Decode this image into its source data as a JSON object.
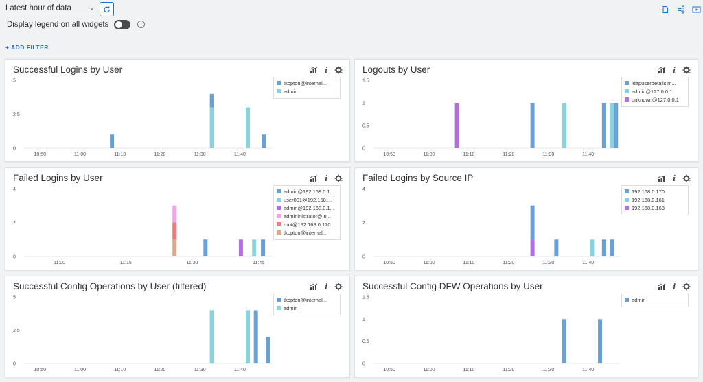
{
  "toolbar": {
    "time_range": "Latest hour of data",
    "legend_toggle_label": "Display legend on all widgets",
    "add_filter_label": "+ ADD FILTER",
    "legend_toggle_on": false
  },
  "colors": {
    "blue": "#6b9fd8",
    "cyan": "#88d3de",
    "purple": "#b36fe0",
    "pink": "#eea6e8",
    "red": "#ee7d7d",
    "tan": "#d8a98a",
    "accent": "#1a73c9"
  },
  "widgets": [
    {
      "title": "Successful Logins by User",
      "legend": [
        {
          "label": "tkopton@internal...",
          "color": "#6b9fd8"
        },
        {
          "label": "admin",
          "color": "#88d3de"
        }
      ],
      "chart_data": {
        "type": "bar",
        "stacked": true,
        "xlim": [
          "10:46",
          "11:48"
        ],
        "xticks": [
          "10:50",
          "11:00",
          "11:10",
          "11:20",
          "11:30",
          "11:40"
        ],
        "yticks": [
          "0",
          "2.5",
          "5"
        ],
        "ylim": [
          0,
          5
        ],
        "bars": [
          {
            "x": "11:08",
            "segments": [
              {
                "series": "tkopton@internal...",
                "value": 1
              }
            ]
          },
          {
            "x": "11:33",
            "segments": [
              {
                "series": "admin",
                "value": 3
              },
              {
                "series": "tkopton@internal...",
                "value": 1
              }
            ]
          },
          {
            "x": "11:42",
            "segments": [
              {
                "series": "admin",
                "value": 3
              }
            ]
          },
          {
            "x": "11:46",
            "segments": [
              {
                "series": "tkopton@internal...",
                "value": 1
              }
            ]
          }
        ]
      }
    },
    {
      "title": "Logouts by User",
      "legend": [
        {
          "label": "ldapuserdetailsim...",
          "color": "#6b9fd8"
        },
        {
          "label": "admin@127.0.0.1",
          "color": "#88d3de"
        },
        {
          "label": "unknown@127.0.0.1",
          "color": "#b36fe0"
        }
      ],
      "chart_data": {
        "type": "bar",
        "stacked": true,
        "xlim": [
          "10:46",
          "11:48"
        ],
        "xticks": [
          "10:50",
          "11:00",
          "11:10",
          "11:20",
          "11:30",
          "11:40"
        ],
        "yticks": [
          "0",
          "0.5",
          "1",
          "1.5"
        ],
        "ylim": [
          0,
          1.5
        ],
        "bars": [
          {
            "x": "11:07",
            "segments": [
              {
                "series": "unknown@127.0.0.1",
                "value": 1
              }
            ]
          },
          {
            "x": "11:26",
            "segments": [
              {
                "series": "ldapuserdetailsim...",
                "value": 1
              }
            ]
          },
          {
            "x": "11:34",
            "segments": [
              {
                "series": "admin@127.0.0.1",
                "value": 1
              }
            ]
          },
          {
            "x": "11:44",
            "segments": [
              {
                "series": "ldapuserdetailsim...",
                "value": 1
              }
            ]
          },
          {
            "x": "11:46",
            "segments": [
              {
                "series": "admin@127.0.0.1",
                "value": 1
              }
            ]
          },
          {
            "x": "11:47",
            "segments": [
              {
                "series": "ldapuserdetailsim...",
                "value": 1
              }
            ]
          }
        ]
      }
    },
    {
      "title": "Failed Logins by User",
      "legend": [
        {
          "label": "admin@192.168.0.1...",
          "color": "#6b9fd8"
        },
        {
          "label": "user001@192.168....",
          "color": "#88d3de"
        },
        {
          "label": "admin@192.168.0.1...",
          "color": "#b36fe0"
        },
        {
          "label": "admininistrator@in...",
          "color": "#eea6e8"
        },
        {
          "label": "root@192.168.0.170",
          "color": "#ee7d7d"
        },
        {
          "label": "tkopton@internal...",
          "color": "#d8a98a"
        }
      ],
      "chart_data": {
        "type": "bar",
        "stacked": true,
        "xlim": [
          "10:52",
          "11:48"
        ],
        "xticks": [
          "11:00",
          "11:15",
          "11:30",
          "11:45"
        ],
        "yticks": [
          "0",
          "2",
          "4"
        ],
        "ylim": [
          0,
          4
        ],
        "bars": [
          {
            "x": "11:26",
            "segments": [
              {
                "series": "tkopton@internal...",
                "value": 1
              },
              {
                "series": "root@192.168.0.170",
                "value": 1
              },
              {
                "series": "admininistrator@in...",
                "value": 1
              }
            ]
          },
          {
            "x": "11:33",
            "segments": [
              {
                "series": "admin@192.168.0.1...",
                "value": 1
              }
            ]
          },
          {
            "x": "11:41",
            "segments": [
              {
                "series": "admin@192.168.0.1... ",
                "value": 1
              }
            ]
          },
          {
            "x": "11:44",
            "segments": [
              {
                "series": "user001@192.168....",
                "value": 1
              }
            ]
          },
          {
            "x": "11:46",
            "segments": [
              {
                "series": "admin@192.168.0.1...",
                "value": 1
              }
            ]
          }
        ]
      }
    },
    {
      "title": "Failed Logins by Source IP",
      "legend": [
        {
          "label": "192.168.0.170",
          "color": "#6b9fd8"
        },
        {
          "label": "192.168.0.161",
          "color": "#88d3de"
        },
        {
          "label": "192.168.0.163",
          "color": "#b36fe0"
        }
      ],
      "chart_data": {
        "type": "bar",
        "stacked": true,
        "xlim": [
          "10:46",
          "11:48"
        ],
        "xticks": [
          "10:50",
          "11:00",
          "11:10",
          "11:20",
          "11:30",
          "11:40"
        ],
        "yticks": [
          "0",
          "2",
          "4"
        ],
        "ylim": [
          0,
          4
        ],
        "bars": [
          {
            "x": "11:26",
            "segments": [
              {
                "series": "192.168.0.163",
                "value": 1
              },
              {
                "series": "192.168.0.170",
                "value": 2
              }
            ]
          },
          {
            "x": "11:32",
            "segments": [
              {
                "series": "192.168.0.170",
                "value": 1
              }
            ]
          },
          {
            "x": "11:41",
            "segments": [
              {
                "series": "192.168.0.161",
                "value": 1
              }
            ]
          },
          {
            "x": "11:44",
            "segments": [
              {
                "series": "192.168.0.170",
                "value": 1
              }
            ]
          },
          {
            "x": "11:46",
            "segments": [
              {
                "series": "192.168.0.170",
                "value": 1
              }
            ]
          }
        ]
      }
    },
    {
      "title": "Successful Config Operations by User (filtered)",
      "legend": [
        {
          "label": "tkopton@internal...",
          "color": "#6b9fd8"
        },
        {
          "label": "admin",
          "color": "#88d3de"
        }
      ],
      "chart_data": {
        "type": "bar",
        "stacked": true,
        "xlim": [
          "10:46",
          "11:48"
        ],
        "xticks": [
          "10:50",
          "11:00",
          "11:10",
          "11:20",
          "11:30",
          "11:40"
        ],
        "yticks": [
          "0",
          "2.5",
          "5"
        ],
        "ylim": [
          0,
          5
        ],
        "bars": [
          {
            "x": "11:33",
            "segments": [
              {
                "series": "admin",
                "value": 4
              }
            ]
          },
          {
            "x": "11:42",
            "segments": [
              {
                "series": "admin",
                "value": 4
              }
            ]
          },
          {
            "x": "11:44",
            "segments": [
              {
                "series": "tkopton@internal...",
                "value": 4
              }
            ]
          },
          {
            "x": "11:47",
            "segments": [
              {
                "series": "tkopton@internal...",
                "value": 2
              }
            ]
          }
        ]
      }
    },
    {
      "title": "Successful Config DFW Operations by User",
      "legend": [
        {
          "label": "admin",
          "color": "#6b9fd8"
        }
      ],
      "chart_data": {
        "type": "bar",
        "stacked": true,
        "xlim": [
          "10:46",
          "11:48"
        ],
        "xticks": [
          "10:50",
          "11:00",
          "11:10",
          "11:20",
          "11:30",
          "11:40"
        ],
        "yticks": [
          "0",
          "0.5",
          "1",
          "1.5"
        ],
        "ylim": [
          0,
          1.5
        ],
        "bars": [
          {
            "x": "11:34",
            "segments": [
              {
                "series": "admin",
                "value": 1
              }
            ]
          },
          {
            "x": "11:43",
            "segments": [
              {
                "series": "admin",
                "value": 1
              }
            ]
          }
        ]
      }
    }
  ]
}
